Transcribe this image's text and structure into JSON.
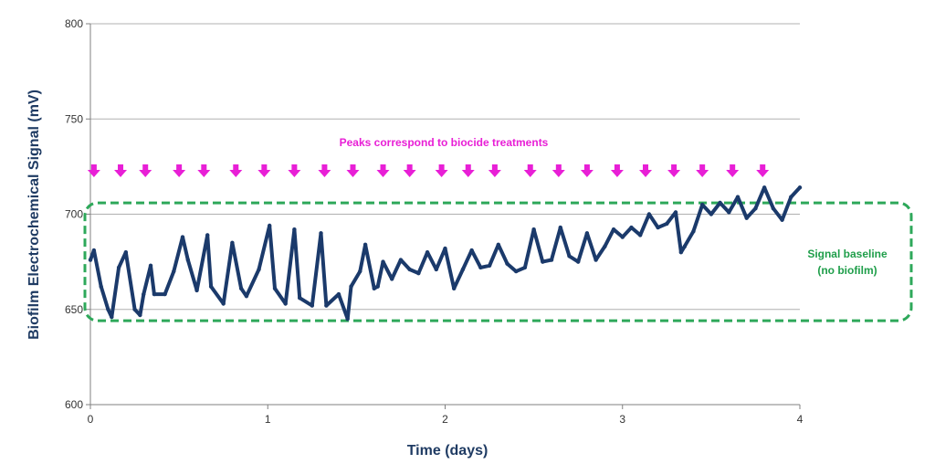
{
  "chart_data": {
    "type": "line",
    "title": "",
    "xlabel": "Time (days)",
    "ylabel": "Biofilm Electrochemical Signal (mV)",
    "xlim": [
      0,
      4
    ],
    "ylim": [
      600,
      800
    ],
    "x_ticks": [
      "0",
      "1",
      "2",
      "3",
      "4"
    ],
    "y_ticks": [
      "600",
      "650",
      "700",
      "750",
      "800"
    ],
    "grid": "horizontal",
    "series": [
      {
        "color": "#1b3a6b",
        "x": [
          0.0,
          0.02,
          0.06,
          0.1,
          0.12,
          0.16,
          0.2,
          0.25,
          0.28,
          0.3,
          0.34,
          0.36,
          0.42,
          0.47,
          0.52,
          0.55,
          0.6,
          0.66,
          0.68,
          0.75,
          0.8,
          0.85,
          0.88,
          0.95,
          1.01,
          1.04,
          1.1,
          1.15,
          1.18,
          1.25,
          1.3,
          1.33,
          1.4,
          1.45,
          1.47,
          1.52,
          1.55,
          1.6,
          1.62,
          1.65,
          1.7,
          1.75,
          1.8,
          1.85,
          1.9,
          1.95,
          2.0,
          2.05,
          2.1,
          2.15,
          2.2,
          2.25,
          2.3,
          2.35,
          2.4,
          2.45,
          2.5,
          2.55,
          2.6,
          2.65,
          2.7,
          2.75,
          2.8,
          2.85,
          2.9,
          2.95,
          3.0,
          3.05,
          3.1,
          3.15,
          3.2,
          3.25,
          3.3,
          3.33,
          3.35,
          3.4,
          3.45,
          3.5,
          3.55,
          3.6,
          3.65,
          3.7,
          3.75,
          3.8,
          3.85,
          3.9,
          3.95,
          4.0
        ],
        "y": [
          676,
          681,
          662,
          650,
          646,
          672,
          680,
          650,
          647,
          658,
          673,
          658,
          658,
          670,
          688,
          676,
          660,
          689,
          662,
          653,
          685,
          661,
          657,
          671,
          694,
          661,
          653,
          692,
          656,
          652,
          690,
          652,
          658,
          645,
          662,
          670,
          684,
          661,
          662,
          675,
          666,
          676,
          671,
          669,
          680,
          671,
          682,
          661,
          671,
          681,
          672,
          673,
          684,
          674,
          670,
          672,
          692,
          675,
          676,
          693,
          678,
          675,
          690,
          676,
          683,
          692,
          688,
          693,
          689,
          700,
          693,
          695,
          701,
          680,
          683,
          691,
          705,
          700,
          706,
          701,
          709,
          698,
          703,
          714,
          703,
          697,
          709,
          714
        ]
      }
    ],
    "annotations": [
      {
        "text": "Peaks correspond to biocide treatments",
        "color": "#e81fd6"
      },
      {
        "text_line1": "Signal baseline",
        "text_line2": "(no biofilm)",
        "color": "#1f9e4a"
      }
    ],
    "treatment_markers_x": [
      0.02,
      0.17,
      0.31,
      0.5,
      0.64,
      0.82,
      0.98,
      1.15,
      1.32,
      1.48,
      1.65,
      1.8,
      1.98,
      2.13,
      2.28,
      2.48,
      2.64,
      2.8,
      2.97,
      3.13,
      3.29,
      3.45,
      3.62,
      3.79
    ],
    "marker_color": "#e81fd6",
    "baseline_box": {
      "y_range": [
        645,
        705
      ],
      "color": "#2ea85a"
    }
  }
}
